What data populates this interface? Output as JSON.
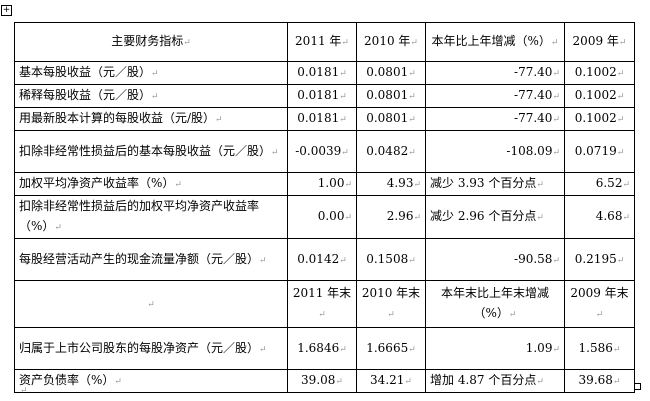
{
  "table": {
    "header1": [
      "主要财务指标",
      "2011 年",
      "2010 年",
      "本年比上年增减（%）",
      "2009 年"
    ],
    "rows1": [
      [
        "基本每股收益（元／股）",
        "0.0181",
        "0.0801",
        "-77.40",
        "0.1002"
      ],
      [
        "稀释每股收益（元／股）",
        "0.0181",
        "0.0801",
        "-77.40",
        "0.1002"
      ],
      [
        "用最新股本计算的每股收益（元/股）",
        "0.0181",
        "0.0801",
        "-77.40",
        "0.1002"
      ],
      [
        "扣除非经常性损益后的基本每股收益（元／股）",
        "-0.0039",
        "0.0482",
        "-108.09",
        "0.0719"
      ],
      [
        "加权平均净资产收益率（%）",
        "1.00",
        "4.93",
        "减少 3.93 个百分点",
        "6.52"
      ],
      [
        "扣除非经常性损益后的加权平均净资产收益率（%）",
        "0.00",
        "2.96",
        "减少 2.96 个百分点",
        "4.68"
      ],
      [
        "每股经营活动产生的现金流量净额（元／股）",
        "0.0142",
        "0.1508",
        "-90.58",
        "0.2195"
      ]
    ],
    "header2": [
      "",
      "2011 年末",
      "2010 年末",
      "本年末比上年末增减（%）",
      "2009 年末"
    ],
    "rows2": [
      [
        "归属于上市公司股东的每股净资产（元／股）",
        "1.6846",
        "1.6665",
        "1.09",
        "1.586"
      ],
      [
        "资产负债率（%）",
        "39.08",
        "34.21",
        "增加 4.87 个百分点",
        "39.68"
      ]
    ]
  }
}
